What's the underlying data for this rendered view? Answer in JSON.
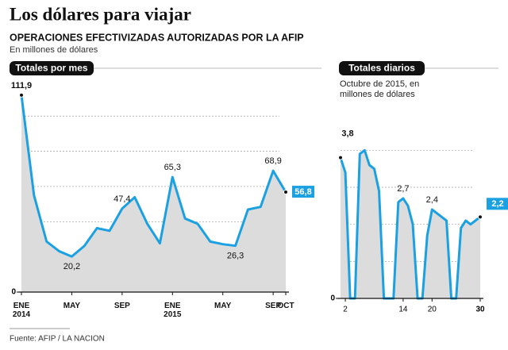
{
  "title": "Los dólares para viajar",
  "subtitle": "OPERACIONES EFECTIVIZADAS AUTORIZADAS POR LA AFIP",
  "unit_note": "En millones de dólares",
  "source": "Fuente: AFIP / LA NACION",
  "chart_data": [
    {
      "type": "area",
      "title": "Totales por mes",
      "categories": [
        "ENE 2014",
        null,
        null,
        null,
        "MAY",
        null,
        null,
        null,
        "SEP",
        null,
        null,
        null,
        "ENE 2015",
        null,
        null,
        null,
        "MAY",
        null,
        null,
        null,
        "SEP",
        "OCT"
      ],
      "values": [
        111.9,
        54.9,
        28.7,
        23.2,
        20.2,
        26.2,
        36.3,
        34.8,
        47.4,
        53.9,
        38.8,
        27.7,
        65.3,
        41.8,
        38.8,
        28.7,
        27.2,
        26.3,
        46.9,
        48.4,
        68.9,
        56.8
      ],
      "value_labels": [
        "111,9",
        null,
        null,
        null,
        "20,2",
        null,
        null,
        null,
        "47,4",
        null,
        null,
        null,
        "65,3",
        null,
        null,
        null,
        null,
        "26,3",
        null,
        null,
        "68,9",
        "56,8"
      ],
      "ylim": [
        0,
        115
      ],
      "yticks": [
        0
      ],
      "ygrid": [
        20,
        40,
        60,
        80,
        100
      ],
      "color": "#1ba1e2"
    },
    {
      "type": "area",
      "title": "Totales diarios",
      "subtitle": "Octubre de 2015, en millones de dólares",
      "x": [
        1,
        2,
        3,
        4,
        5,
        6,
        7,
        8,
        9,
        10,
        11,
        12,
        13,
        14,
        15,
        16,
        17,
        18,
        19,
        20,
        21,
        22,
        23,
        24,
        25,
        26,
        27,
        28,
        29,
        30
      ],
      "values": [
        3.8,
        3.4,
        0,
        0,
        3.9,
        4.0,
        3.6,
        3.5,
        2.9,
        0,
        0,
        0,
        2.6,
        2.7,
        2.5,
        2.0,
        0,
        0,
        1.7,
        2.4,
        2.3,
        2.2,
        2.1,
        0,
        0,
        1.9,
        2.1,
        2.0,
        2.1,
        2.2
      ],
      "value_labels": [
        "3,8",
        null,
        null,
        null,
        null,
        null,
        null,
        null,
        null,
        null,
        null,
        null,
        null,
        "2,7",
        null,
        null,
        null,
        null,
        null,
        "2,4",
        null,
        null,
        null,
        null,
        null,
        null,
        null,
        null,
        null,
        "2,2"
      ],
      "xlim": [
        1,
        30
      ],
      "xticks": [
        2,
        14,
        20,
        30
      ],
      "ylim": [
        0,
        4.2
      ],
      "yticks": [
        0
      ],
      "ygrid": [
        1,
        2,
        3,
        4
      ],
      "color": "#1ba1e2"
    }
  ]
}
